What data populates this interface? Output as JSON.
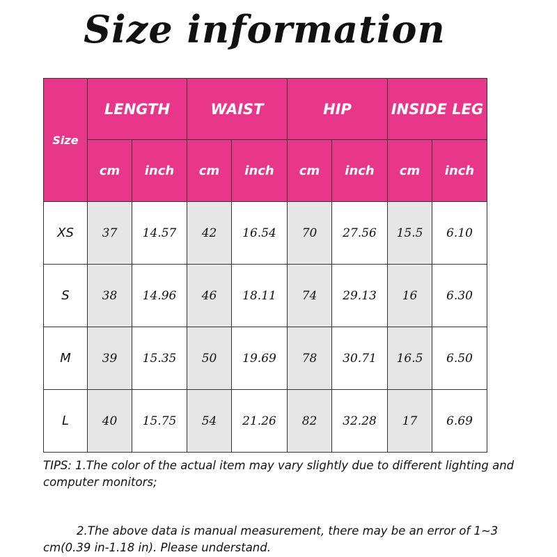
{
  "title": "Size information",
  "table": {
    "size_header": "Size",
    "groups": [
      "LENGTH",
      "WAIST",
      "HIP",
      "INSIDE LEG"
    ],
    "units": [
      "cm",
      "inch"
    ],
    "rows": [
      {
        "size": "XS",
        "values": [
          "37",
          "14.57",
          "42",
          "16.54",
          "70",
          "27.56",
          "15.5",
          "6.10"
        ]
      },
      {
        "size": "S",
        "values": [
          "38",
          "14.96",
          "46",
          "18.11",
          "74",
          "29.13",
          "16",
          "6.30"
        ]
      },
      {
        "size": "M",
        "values": [
          "39",
          "15.35",
          "50",
          "19.69",
          "78",
          "30.71",
          "16.5",
          "6.50"
        ]
      },
      {
        "size": "L",
        "values": [
          "40",
          "15.75",
          "54",
          "21.26",
          "82",
          "32.28",
          "17",
          "6.69"
        ]
      }
    ]
  },
  "tips": {
    "line1": "TIPS: 1.The color of the actual item may vary slightly due to different lighting and computer monitors;",
    "line2": "2.The above data is manual measurement, there may be an error of 1~3 cm(0.39 in-1.18 in). Please understand."
  },
  "colors": {
    "header": "#e8378a",
    "cm_column": "#e6e6e6"
  }
}
